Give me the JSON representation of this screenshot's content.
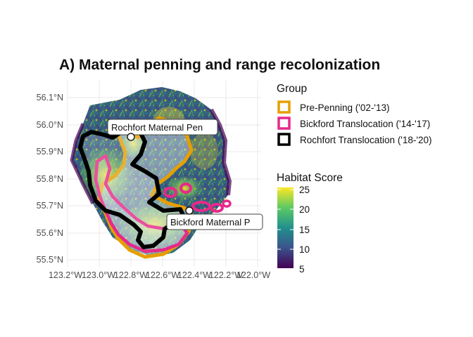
{
  "title": "A) Maternal penning and range recolonization",
  "axes": {
    "y_ticks": [
      "56.1°N",
      "56.0°N",
      "55.9°N",
      "55.8°N",
      "55.7°N",
      "55.6°N",
      "55.5°N"
    ],
    "x_ticks": [
      "123.2°W",
      "123.0°W",
      "122.8°W",
      "122.6°W",
      "122.4°W",
      "122.2°W",
      "122.0°W"
    ]
  },
  "labels": {
    "rochfort": "Rochfort Maternal Pen",
    "bickford": "Bickford Maternal P"
  },
  "legend": {
    "group_title": "Group",
    "groups": [
      {
        "label": "Pre-Penning ('02-'13)",
        "color": "#E69F00"
      },
      {
        "label": "Bickford Translocation ('14-'17)",
        "color": "#E7298A"
      },
      {
        "label": "Rochfort Translocation ('18-'20)",
        "color": "#000000"
      }
    ],
    "habitat_title": "Habitat Score",
    "habitat_ticks": [
      "25",
      "20",
      "15",
      "10",
      "5"
    ],
    "colormap": [
      "#440154",
      "#3b528b",
      "#21908d",
      "#5dc963",
      "#fde725"
    ]
  }
}
